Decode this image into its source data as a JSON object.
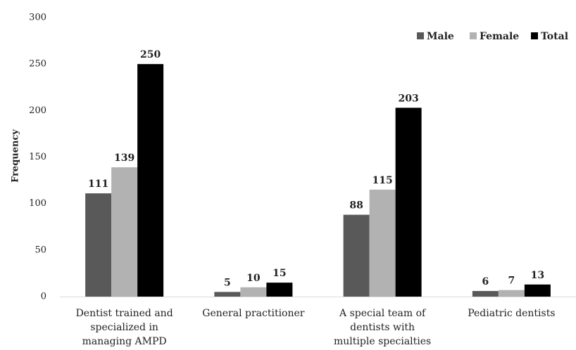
{
  "chart_data": {
    "type": "bar",
    "title": "",
    "xlabel": "",
    "ylabel": "Frequency",
    "ylim": [
      0,
      300
    ],
    "yticks": [
      0,
      50,
      100,
      150,
      200,
      250,
      300
    ],
    "grid": false,
    "legend_position": "top-right",
    "categories": [
      [
        "Dentist trained and",
        "specialized in",
        "managing AMPD"
      ],
      [
        "General practitioner"
      ],
      [
        "A special team of",
        "dentists with",
        "multiple specialties"
      ],
      [
        "Pediatric dentists"
      ]
    ],
    "series": [
      {
        "name": "Male",
        "color": "#595959",
        "values": [
          111,
          5,
          88,
          6
        ]
      },
      {
        "name": "Female",
        "color": "#b2b2b2",
        "values": [
          139,
          10,
          115,
          7
        ]
      },
      {
        "name": "Total",
        "color": "#000000",
        "values": [
          250,
          15,
          203,
          13
        ]
      }
    ]
  }
}
